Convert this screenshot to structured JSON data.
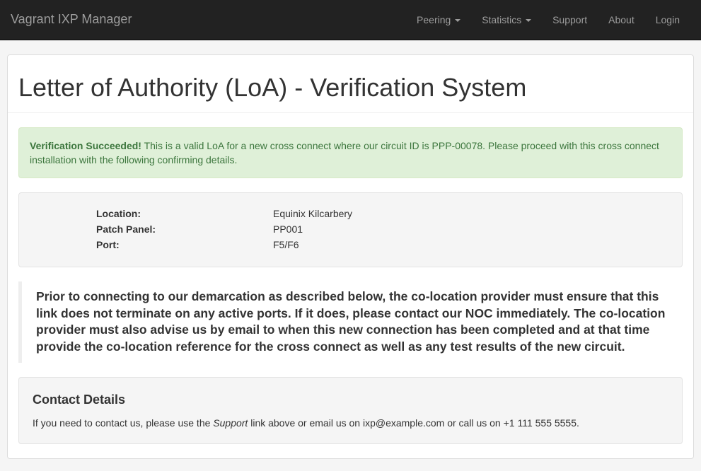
{
  "navbar": {
    "brand": "Vagrant IXP Manager",
    "items": [
      {
        "label": "Peering",
        "dropdown": true
      },
      {
        "label": "Statistics",
        "dropdown": true
      },
      {
        "label": "Support",
        "dropdown": false
      },
      {
        "label": "About",
        "dropdown": false
      },
      {
        "label": "Login",
        "dropdown": false
      }
    ]
  },
  "page": {
    "title": "Letter of Authority (LoA) - Verification System"
  },
  "alert": {
    "strong": "Verification Succeeded!",
    "body": " This is a valid LoA for a new cross connect where our circuit ID is PPP-00078. Please proceed with this cross connect installation with the following confirming details."
  },
  "details": {
    "location_label": "Location:",
    "location_value": "Equinix Kilcarbery",
    "panel_label": "Patch Panel:",
    "panel_value": "PP001",
    "port_label": "Port:",
    "port_value": "F5/F6"
  },
  "notice": "Prior to connecting to our demarcation as described below, the co-location provider must ensure that this link does not terminate on any active ports. If it does, please contact our NOC immediately. The co-location provider must also advise us by email to when this new connection has been completed and at that time provide the co-location reference for the cross connect as well as any test results of the new circuit.",
  "contact": {
    "heading": "Contact Details",
    "pre": "If you need to contact us, please use the ",
    "em": "Support",
    "post": " link above or email us on ixp@example.com or call us on +1 111 555 5555."
  },
  "colors": {
    "navbar_bg": "#222222",
    "navbar_text": "#9d9d9d",
    "page_bg": "#f5f5f5",
    "panel_bg": "#ffffff",
    "alert_bg": "#dff0d8",
    "alert_border": "#d6e9c6",
    "alert_text": "#3c763d",
    "well_bg": "#f5f5f5",
    "well_border": "#e3e3e3",
    "blockquote_border": "#eeeeee"
  }
}
